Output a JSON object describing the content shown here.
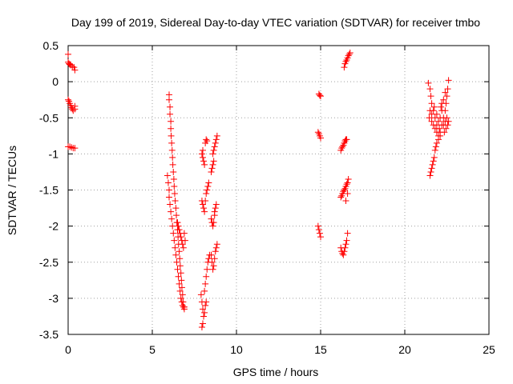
{
  "chart_data": {
    "type": "scatter",
    "title": "Day 199 of 2019, Sidereal Day-to-day VTEC variation (SDTVAR) for receiver tmbo",
    "xlabel": "GPS time / hours",
    "ylabel": "SDTVAR / TECUs",
    "xlim": [
      0,
      25
    ],
    "ylim": [
      -3.5,
      0.5
    ],
    "xticks": [
      0,
      5,
      10,
      15,
      20,
      25
    ],
    "xtick_labels": [
      "0",
      "5",
      "10",
      "15",
      "20",
      "25"
    ],
    "yticks": [
      0.5,
      0,
      -0.5,
      -1,
      -1.5,
      -2,
      -2.5,
      -3,
      -3.5
    ],
    "ytick_labels": [
      "0.5",
      "0",
      "-0.5",
      "-1",
      "-1.5",
      "-2",
      "-2.5",
      "-3",
      "-3.5"
    ],
    "grid": true,
    "marker": "+",
    "marker_color": "#ff0000",
    "series": [
      {
        "name": "SDTVAR",
        "points": [
          [
            0.0,
            0.38
          ],
          [
            0.0,
            0.27
          ],
          [
            0.05,
            0.25
          ],
          [
            0.1,
            0.24
          ],
          [
            0.15,
            0.23
          ],
          [
            0.25,
            0.21
          ],
          [
            0.35,
            0.2
          ],
          [
            0.4,
            0.16
          ],
          [
            0.0,
            -0.25
          ],
          [
            0.05,
            -0.27
          ],
          [
            0.1,
            -0.3
          ],
          [
            0.15,
            -0.33
          ],
          [
            0.2,
            -0.36
          ],
          [
            0.25,
            -0.38
          ],
          [
            0.3,
            -0.4
          ],
          [
            0.4,
            -0.34
          ],
          [
            0.4,
            -0.38
          ],
          [
            0.0,
            -0.9
          ],
          [
            0.1,
            -0.9
          ],
          [
            0.2,
            -0.91
          ],
          [
            0.3,
            -0.92
          ],
          [
            0.4,
            -0.92
          ],
          [
            6.0,
            -0.18
          ],
          [
            6.0,
            -0.25
          ],
          [
            6.05,
            -0.35
          ],
          [
            6.05,
            -0.45
          ],
          [
            6.1,
            -0.55
          ],
          [
            6.1,
            -0.65
          ],
          [
            6.12,
            -0.75
          ],
          [
            6.15,
            -0.85
          ],
          [
            6.18,
            -0.95
          ],
          [
            6.2,
            -1.05
          ],
          [
            6.22,
            -1.15
          ],
          [
            6.25,
            -1.25
          ],
          [
            6.28,
            -1.35
          ],
          [
            6.3,
            -1.45
          ],
          [
            6.33,
            -1.55
          ],
          [
            6.36,
            -1.65
          ],
          [
            6.4,
            -1.75
          ],
          [
            6.43,
            -1.85
          ],
          [
            6.46,
            -1.95
          ],
          [
            6.5,
            -2.05
          ],
          [
            6.53,
            -2.15
          ],
          [
            6.56,
            -2.25
          ],
          [
            6.6,
            -2.35
          ],
          [
            6.63,
            -2.45
          ],
          [
            6.66,
            -2.55
          ],
          [
            6.7,
            -2.65
          ],
          [
            6.73,
            -2.75
          ],
          [
            6.76,
            -2.85
          ],
          [
            6.8,
            -2.95
          ],
          [
            6.83,
            -3.05
          ],
          [
            6.86,
            -3.12
          ],
          [
            6.9,
            -3.15
          ],
          [
            5.9,
            -1.3
          ],
          [
            5.95,
            -1.4
          ],
          [
            6.0,
            -1.5
          ],
          [
            6.0,
            -1.6
          ],
          [
            6.05,
            -1.7
          ],
          [
            6.1,
            -1.8
          ],
          [
            6.15,
            -1.9
          ],
          [
            6.2,
            -2.0
          ],
          [
            6.25,
            -2.1
          ],
          [
            6.3,
            -2.2
          ],
          [
            6.35,
            -2.3
          ],
          [
            6.4,
            -2.4
          ],
          [
            6.45,
            -2.5
          ],
          [
            6.5,
            -2.6
          ],
          [
            6.55,
            -2.7
          ],
          [
            6.6,
            -2.8
          ],
          [
            6.65,
            -2.9
          ],
          [
            6.7,
            -3.0
          ],
          [
            6.75,
            -3.05
          ],
          [
            6.8,
            -3.1
          ],
          [
            6.9,
            -3.12
          ],
          [
            6.5,
            -1.95
          ],
          [
            6.55,
            -2.0
          ],
          [
            6.6,
            -2.05
          ],
          [
            6.65,
            -2.1
          ],
          [
            6.7,
            -2.15
          ],
          [
            6.75,
            -2.2
          ],
          [
            6.8,
            -2.25
          ],
          [
            6.85,
            -2.3
          ],
          [
            6.9,
            -2.1
          ],
          [
            6.95,
            -2.2
          ],
          [
            7.95,
            -1.0
          ],
          [
            8.0,
            -1.05
          ],
          [
            8.05,
            -1.1
          ],
          [
            8.1,
            -1.15
          ],
          [
            8.0,
            -0.95
          ],
          [
            8.15,
            -0.85
          ],
          [
            8.2,
            -0.8
          ],
          [
            8.25,
            -0.82
          ],
          [
            7.95,
            -1.65
          ],
          [
            8.0,
            -1.7
          ],
          [
            8.05,
            -1.75
          ],
          [
            8.1,
            -1.8
          ],
          [
            8.15,
            -1.65
          ],
          [
            8.2,
            -1.55
          ],
          [
            8.25,
            -1.5
          ],
          [
            8.3,
            -1.45
          ],
          [
            8.35,
            -1.4
          ],
          [
            7.9,
            -2.95
          ],
          [
            7.95,
            -3.05
          ],
          [
            8.0,
            -3.15
          ],
          [
            8.05,
            -3.25
          ],
          [
            8.0,
            -3.35
          ],
          [
            7.95,
            -3.4
          ],
          [
            8.1,
            -3.2
          ],
          [
            8.15,
            -3.1
          ],
          [
            8.2,
            -3.05
          ],
          [
            8.1,
            -2.9
          ],
          [
            8.15,
            -2.8
          ],
          [
            8.2,
            -2.7
          ],
          [
            8.25,
            -2.6
          ],
          [
            8.3,
            -2.5
          ],
          [
            8.35,
            -2.45
          ],
          [
            8.4,
            -2.4
          ],
          [
            8.5,
            -1.25
          ],
          [
            8.55,
            -1.2
          ],
          [
            8.6,
            -1.15
          ],
          [
            8.65,
            -1.1
          ],
          [
            8.6,
            -1.0
          ],
          [
            8.65,
            -0.95
          ],
          [
            8.7,
            -0.9
          ],
          [
            8.75,
            -0.85
          ],
          [
            8.8,
            -0.8
          ],
          [
            8.85,
            -0.75
          ],
          [
            8.5,
            -1.9
          ],
          [
            8.55,
            -1.95
          ],
          [
            8.6,
            -2.0
          ],
          [
            8.65,
            -1.95
          ],
          [
            8.7,
            -1.85
          ],
          [
            8.75,
            -1.75
          ],
          [
            8.8,
            -1.7
          ],
          [
            8.7,
            -1.8
          ],
          [
            8.5,
            -2.4
          ],
          [
            8.55,
            -2.5
          ],
          [
            8.6,
            -2.6
          ],
          [
            8.65,
            -2.55
          ],
          [
            8.7,
            -2.45
          ],
          [
            8.75,
            -2.35
          ],
          [
            8.8,
            -2.3
          ],
          [
            8.85,
            -2.25
          ],
          [
            14.9,
            -0.17
          ],
          [
            14.95,
            -0.19
          ],
          [
            15.0,
            -0.2
          ],
          [
            14.85,
            -0.7
          ],
          [
            14.9,
            -0.72
          ],
          [
            14.95,
            -0.75
          ],
          [
            15.0,
            -0.78
          ],
          [
            14.85,
            -2.0
          ],
          [
            14.9,
            -2.05
          ],
          [
            14.95,
            -2.1
          ],
          [
            15.0,
            -2.15
          ],
          [
            16.4,
            0.2
          ],
          [
            16.45,
            0.25
          ],
          [
            16.5,
            0.28
          ],
          [
            16.55,
            0.3
          ],
          [
            16.6,
            0.33
          ],
          [
            16.65,
            0.36
          ],
          [
            16.7,
            0.38
          ],
          [
            16.75,
            0.4
          ],
          [
            16.2,
            -0.95
          ],
          [
            16.25,
            -0.92
          ],
          [
            16.3,
            -0.9
          ],
          [
            16.35,
            -0.88
          ],
          [
            16.4,
            -0.85
          ],
          [
            16.45,
            -0.82
          ],
          [
            16.5,
            -0.8
          ],
          [
            16.55,
            -0.8
          ],
          [
            16.2,
            -1.6
          ],
          [
            16.25,
            -1.58
          ],
          [
            16.3,
            -1.55
          ],
          [
            16.35,
            -1.52
          ],
          [
            16.4,
            -1.5
          ],
          [
            16.45,
            -1.48
          ],
          [
            16.5,
            -1.45
          ],
          [
            16.55,
            -1.42
          ],
          [
            16.6,
            -1.4
          ],
          [
            16.65,
            -1.35
          ],
          [
            16.6,
            -1.55
          ],
          [
            16.5,
            -1.65
          ],
          [
            16.2,
            -2.3
          ],
          [
            16.25,
            -2.35
          ],
          [
            16.3,
            -2.38
          ],
          [
            16.35,
            -2.4
          ],
          [
            16.4,
            -2.35
          ],
          [
            16.45,
            -2.3
          ],
          [
            16.5,
            -2.25
          ],
          [
            16.55,
            -2.2
          ],
          [
            16.6,
            -2.1
          ],
          [
            21.4,
            -0.02
          ],
          [
            21.5,
            -0.1
          ],
          [
            21.55,
            -0.2
          ],
          [
            21.6,
            -0.3
          ],
          [
            21.5,
            -0.4
          ],
          [
            21.45,
            -0.5
          ],
          [
            21.6,
            -0.55
          ],
          [
            21.7,
            -0.6
          ],
          [
            21.8,
            -0.65
          ],
          [
            21.9,
            -0.7
          ],
          [
            22.0,
            -0.75
          ],
          [
            22.1,
            -0.7
          ],
          [
            22.2,
            -0.6
          ],
          [
            22.3,
            -0.5
          ],
          [
            22.4,
            -0.4
          ],
          [
            22.45,
            -0.3
          ],
          [
            22.5,
            -0.2
          ],
          [
            22.55,
            -0.1
          ],
          [
            22.6,
            0.02
          ],
          [
            21.5,
            -1.3
          ],
          [
            21.55,
            -1.25
          ],
          [
            21.6,
            -1.2
          ],
          [
            21.65,
            -1.15
          ],
          [
            21.7,
            -1.1
          ],
          [
            21.75,
            -1.05
          ],
          [
            21.8,
            -0.95
          ],
          [
            21.85,
            -0.9
          ],
          [
            21.9,
            -0.85
          ],
          [
            22.0,
            -0.8
          ],
          [
            22.1,
            -0.75
          ],
          [
            21.6,
            -0.45
          ],
          [
            21.7,
            -0.4
          ],
          [
            21.8,
            -0.5
          ],
          [
            21.9,
            -0.45
          ],
          [
            22.0,
            -0.55
          ],
          [
            22.1,
            -0.5
          ],
          [
            22.2,
            -0.4
          ],
          [
            22.3,
            -0.6
          ],
          [
            22.4,
            -0.55
          ],
          [
            22.5,
            -0.5
          ],
          [
            22.55,
            -0.6
          ],
          [
            22.6,
            -0.55
          ],
          [
            22.2,
            -0.3
          ],
          [
            22.3,
            -0.25
          ],
          [
            22.4,
            -0.15
          ],
          [
            22.35,
            -0.7
          ],
          [
            22.45,
            -0.65
          ],
          [
            21.9,
            -0.6
          ],
          [
            21.75,
            -0.35
          ],
          [
            22.05,
            -0.65
          ],
          [
            22.15,
            -0.35
          ]
        ]
      }
    ]
  }
}
